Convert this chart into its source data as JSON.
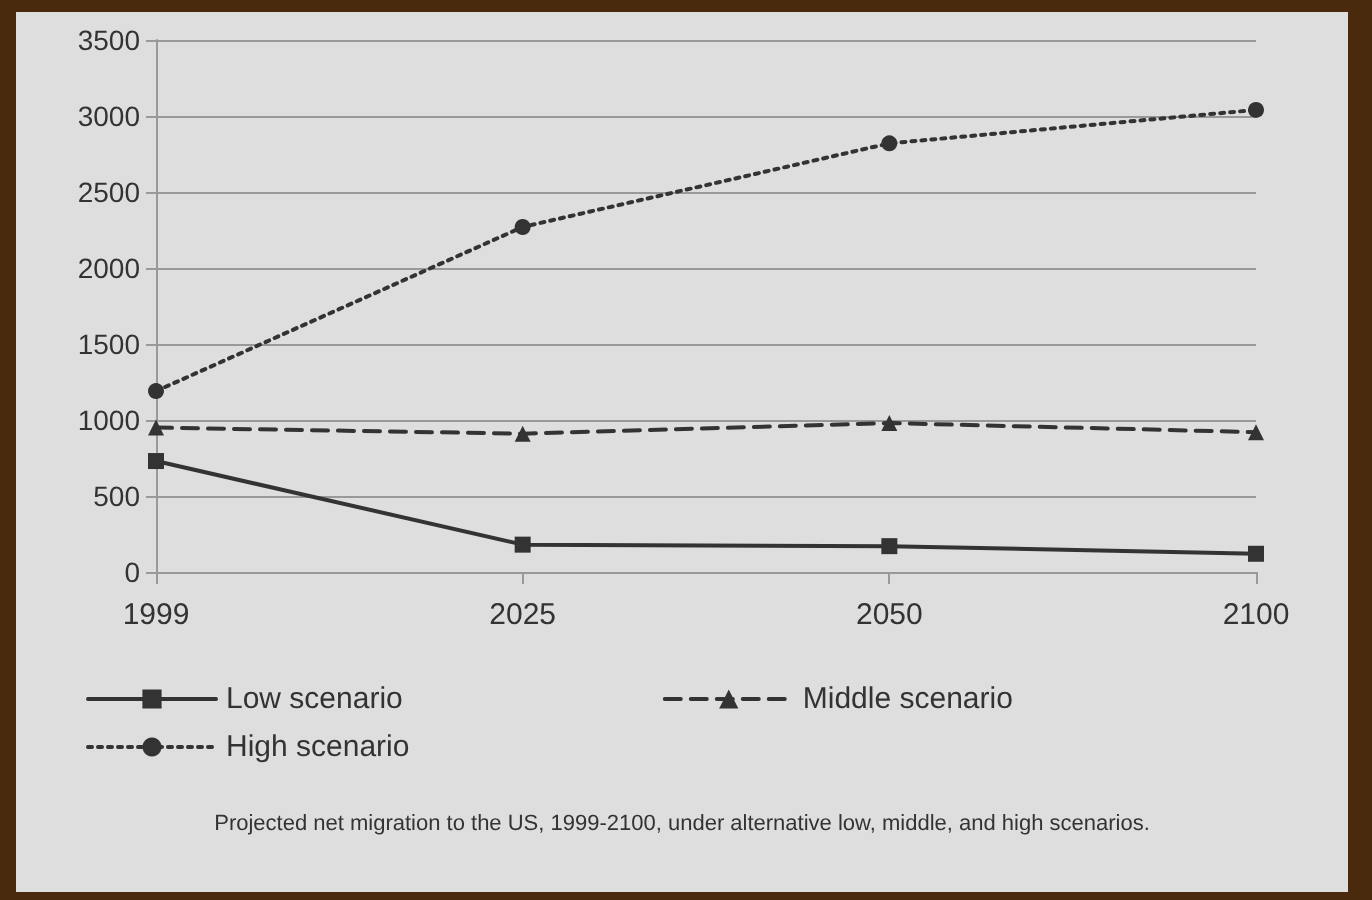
{
  "chart_data": {
    "type": "line",
    "categories": [
      "1999",
      "2025",
      "2050",
      "2100"
    ],
    "series": [
      {
        "name": "Low scenario",
        "color": "#333333",
        "values": [
          730,
          180,
          170,
          120
        ],
        "line_style": "solid",
        "marker": "square"
      },
      {
        "name": "Middle scenario",
        "color": "#333333",
        "values": [
          950,
          910,
          980,
          920
        ],
        "line_style": "dashed",
        "marker": "triangle"
      },
      {
        "name": "High scenario",
        "color": "#333333",
        "values": [
          1190,
          2270,
          2820,
          3040
        ],
        "line_style": "dotted",
        "marker": "circle"
      }
    ],
    "ylim": [
      0,
      3500
    ],
    "yticks": [
      0,
      500,
      1000,
      1500,
      2000,
      2500,
      3000,
      3500
    ],
    "grid": "y",
    "legend": "bottom",
    "annotations": [
      "Projected net migration to the US, 1999-2100, under alternative low, middle, and high scenarios."
    ]
  }
}
